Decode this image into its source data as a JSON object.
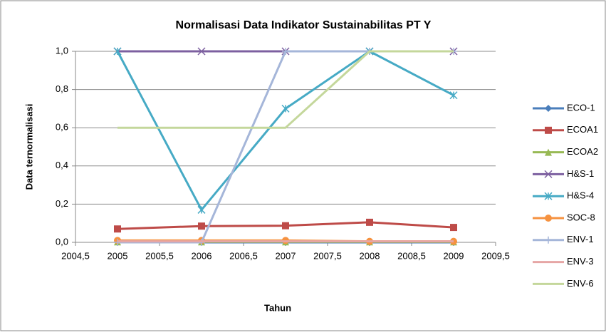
{
  "chart_data": {
    "type": "line",
    "title": "Normalisasi Data Indikator Sustainabilitas PT Y",
    "x_label": "Tahun",
    "y_label": "Data ternormalisasi",
    "x": [
      2005,
      2006,
      2007,
      2008,
      2009
    ],
    "xlim": [
      2004.5,
      2009.5
    ],
    "xticks": [
      {
        "value": 2004.5,
        "label": "2004,5"
      },
      2005,
      {
        "value": 2005.5,
        "label": "2005,5"
      },
      2006,
      {
        "value": 2006.5,
        "label": "2006,5"
      },
      2007,
      {
        "value": 2007.5,
        "label": "2007,5"
      },
      2008,
      {
        "value": 2008.5,
        "label": "2008,5"
      },
      2009,
      {
        "value": 2009.5,
        "label": "2009,5"
      }
    ],
    "ylim": [
      0,
      1
    ],
    "yticks": [
      {
        "value": 0,
        "label": "0,0"
      },
      {
        "value": 0.2,
        "label": "0,2"
      },
      {
        "value": 0.4,
        "label": "0,4"
      },
      {
        "value": 0.6,
        "label": "0,6"
      },
      {
        "value": 0.8,
        "label": "0,8"
      },
      {
        "value": 1,
        "label": "1,0"
      }
    ],
    "grid": true,
    "legend": "right",
    "series": [
      {
        "name": "ECO-1",
        "color": "#4a7ebb",
        "marker": "diamond",
        "values": [
          0,
          0,
          0,
          0,
          0
        ]
      },
      {
        "name": "ECOA1",
        "color": "#be4b48",
        "marker": "square",
        "values": [
          0.07,
          0.085,
          0.087,
          0.105,
          0.078
        ]
      },
      {
        "name": "ECOA2",
        "color": "#98b954",
        "marker": "triangle",
        "values": [
          0.003,
          0.003,
          0.003,
          0.003,
          0.003
        ]
      },
      {
        "name": "H&S-1",
        "color": "#7d60a0",
        "marker": "x",
        "values": [
          1,
          1,
          1,
          1,
          1
        ]
      },
      {
        "name": "H&S-4",
        "color": "#46aac5",
        "marker": "star",
        "values": [
          1,
          0.17,
          0.7,
          1,
          0.77
        ]
      },
      {
        "name": "SOC-8",
        "color": "#f69240",
        "marker": "circle",
        "values": [
          0.01,
          0.01,
          0.01,
          0.005,
          0.005
        ]
      },
      {
        "name": "ENV-1",
        "color": "#a5b6d9",
        "marker": "plus",
        "values": [
          0,
          0,
          1,
          1,
          1
        ]
      },
      {
        "name": "ENV-3",
        "color": "#e6a6a5",
        "marker": "none",
        "values": [
          0.005,
          0.005,
          0.005,
          0.005,
          0.005
        ]
      },
      {
        "name": "ENV-6",
        "color": "#c4d79b",
        "marker": "none",
        "values": [
          0.6,
          0.6,
          0.6,
          1,
          1
        ]
      }
    ]
  }
}
